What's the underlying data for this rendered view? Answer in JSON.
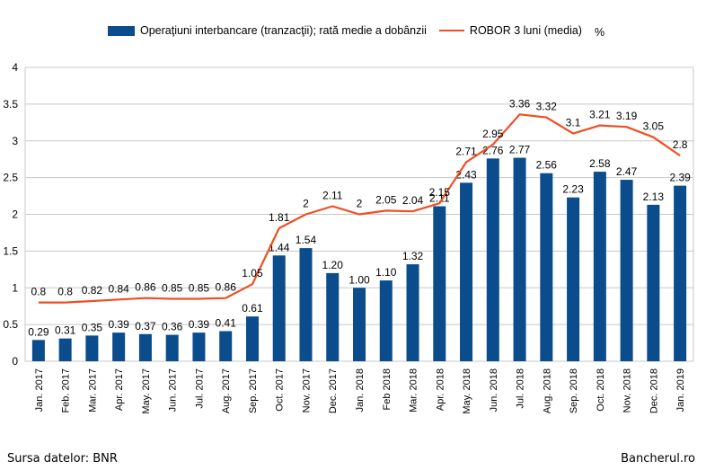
{
  "chart_data": {
    "type": "bar",
    "categories": [
      "Jan. 2017",
      "Feb. 2017",
      "Mar. 2017",
      "Apr. 2017",
      "May. 2017",
      "Jun. 2017",
      "Jul. 2017",
      "Aug. 2017",
      "Sep. 2017",
      "Oct. 2017",
      "Nov. 2017",
      "Dec. 2017",
      "Jan. 2018",
      "Feb 2018",
      "Mar. 2018",
      "Apr. 2018",
      "May. 2018",
      "Jun. 2018",
      "Jul. 2018",
      "Aug. 2018",
      "Sep. 2018",
      "Oct. 2018",
      "Nov. 2018",
      "Dec. 2018",
      "Jan. 2019"
    ],
    "series": [
      {
        "name": "Operaţiuni interbancare (tranzacţii); rată medie a dobânzii",
        "type": "bar",
        "color": "#0a4c8c",
        "values": [
          0.29,
          0.31,
          0.35,
          0.39,
          0.37,
          0.36,
          0.39,
          0.41,
          0.61,
          1.44,
          1.54,
          1.2,
          1.0,
          1.1,
          1.32,
          2.11,
          2.43,
          2.76,
          2.77,
          2.56,
          2.23,
          2.58,
          2.47,
          2.13,
          2.39
        ],
        "labels": [
          "0.29",
          "0.31",
          "0.35",
          "0.39",
          "0.37",
          "0.36",
          "0.39",
          "0.41",
          "0.61",
          "1.44",
          "1.54",
          "1.20",
          "1.00",
          "1.10",
          "1.32",
          "2.11",
          "2.43",
          "2.76",
          "2.77",
          "2.56",
          "2.23",
          "2.58",
          "2.47",
          "2.13",
          "2.39"
        ]
      },
      {
        "name": "ROBOR 3 luni (media)",
        "type": "line",
        "color": "#f04e23",
        "values": [
          0.8,
          0.8,
          0.82,
          0.84,
          0.86,
          0.85,
          0.85,
          0.86,
          1.05,
          1.81,
          2,
          2.11,
          2,
          2.05,
          2.04,
          2.15,
          2.71,
          2.95,
          3.36,
          3.32,
          3.1,
          3.21,
          3.19,
          3.05,
          2.8
        ],
        "labels": [
          "0.8",
          "0.8",
          "0.82",
          "0.84",
          "0.86",
          "0.85",
          "0.85",
          "0.86",
          "1.05",
          "1.81",
          "2",
          "2.11",
          "2",
          "2.05",
          "2.04",
          "2.15",
          "2.71",
          "2.95",
          "3.36",
          "3.32",
          "3.1",
          "3.21",
          "3.19",
          "3.05",
          "2.8"
        ]
      }
    ],
    "ylim": [
      0,
      4
    ],
    "yticks": [
      0,
      0.5,
      1,
      1.5,
      2,
      2.5,
      3,
      3.5,
      4
    ],
    "ytick_labels": [
      "0",
      "0.5",
      "1",
      "1.5",
      "2",
      "2.5",
      "3",
      "3.5",
      "4"
    ],
    "grid": true,
    "legend_position": "top",
    "unit_label": "%"
  },
  "footer": {
    "source": "Sursa datelor: BNR",
    "brand": "Bancherul.ro"
  }
}
